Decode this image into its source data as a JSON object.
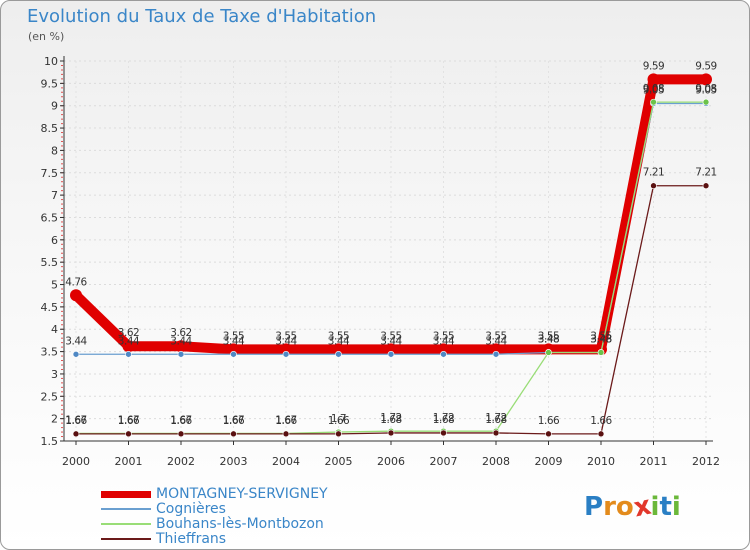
{
  "header": {
    "title": "Evolution du Taux de Taxe d'Habitation",
    "subtitle": "(en %)"
  },
  "logo": {
    "text": "Proxiti"
  },
  "chart_data": {
    "type": "line",
    "title": "Evolution du Taux de Taxe d'Habitation",
    "ylabel": "(en %)",
    "xlabel": "",
    "ylim": [
      1.5,
      10
    ],
    "yticks": [
      1.5,
      2,
      2.5,
      3,
      3.5,
      4,
      4.5,
      5,
      5.5,
      6,
      6.5,
      7,
      7.5,
      8,
      8.5,
      9,
      9.5,
      10
    ],
    "x": [
      "2000",
      "2001",
      "2002",
      "2003",
      "2004",
      "2005",
      "2006",
      "2007",
      "2008",
      "2009",
      "2010",
      "2011",
      "2012"
    ],
    "grid": true,
    "legend_position": "bottom",
    "series": [
      {
        "name": "MONTAGNEY-SERVIGNEY",
        "color": "#e00000",
        "values": [
          4.76,
          3.62,
          3.62,
          3.55,
          3.55,
          3.55,
          3.55,
          3.55,
          3.55,
          3.55,
          3.55,
          9.59,
          9.59
        ]
      },
      {
        "name": "Cognières",
        "color": "#6a9fd0",
        "values": [
          3.44,
          3.44,
          3.44,
          3.44,
          3.44,
          3.44,
          3.44,
          3.44,
          3.44,
          3.48,
          3.48,
          9.05,
          9.05
        ]
      },
      {
        "name": "Bouhans-lès-Montbozon",
        "color": "#99dd77",
        "values": [
          1.67,
          1.67,
          1.67,
          1.67,
          1.67,
          1.7,
          1.72,
          1.72,
          1.72,
          3.48,
          3.48,
          9.08,
          9.08
        ]
      },
      {
        "name": "Thieffrans",
        "color": "#6b1a1a",
        "values": [
          1.66,
          1.66,
          1.66,
          1.66,
          1.66,
          1.66,
          1.68,
          1.68,
          1.68,
          1.66,
          1.66,
          7.21,
          7.21
        ]
      }
    ]
  }
}
